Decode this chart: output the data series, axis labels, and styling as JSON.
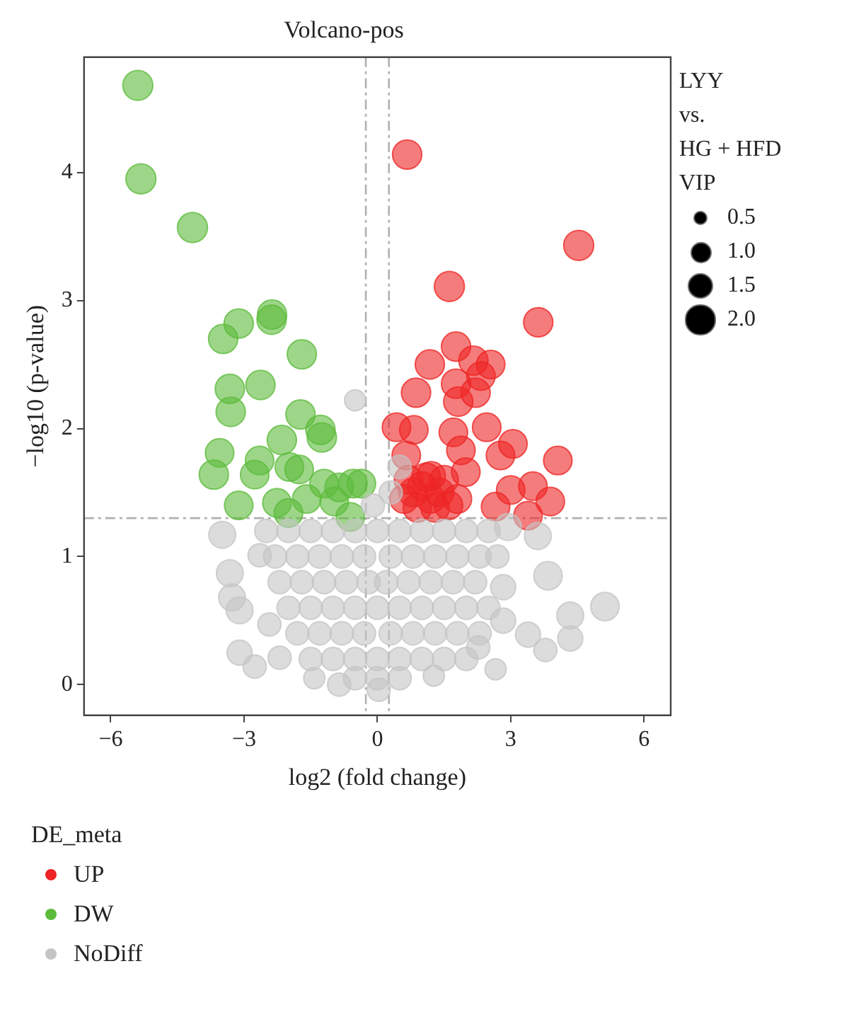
{
  "chart_data": {
    "type": "bubble",
    "title": "Volcano-pos",
    "xlabel": "log2 (fold change)",
    "ylabel": "−log10 (p-value)",
    "legend_title": "DE_meta",
    "legend": "bottom left",
    "grid": false,
    "marker": "circle",
    "xlim": [
      -6.6,
      6.6
    ],
    "xticks": [
      {
        "value": -6,
        "label": "−6"
      },
      {
        "value": -3,
        "label": "−3"
      },
      0,
      3,
      6
    ],
    "ylim": [
      -0.24,
      4.9
    ],
    "yticks": [
      0,
      1,
      2,
      3,
      4
    ],
    "size_legend": [
      {
        "value": 0.5,
        "label": "0.5"
      },
      {
        "value": 1,
        "label": "1.0"
      },
      {
        "value": 1.5,
        "label": "1.5"
      },
      {
        "value": 2,
        "label": "2.0"
      }
    ],
    "annotations": [
      "LYY\nvs.\nHG + HFD",
      "VIP"
    ],
    "ref_lines": [
      {
        "axis": "x",
        "value": -0.26,
        "color": "#b0b0b0",
        "line_style": "dashed"
      },
      {
        "axis": "x",
        "value": 0.26,
        "color": "#b0b0b0",
        "line_style": "dashed"
      },
      {
        "axis": "y",
        "value": 1.3,
        "color": "#b0b0b0",
        "line_style": "dashed"
      }
    ],
    "series": [
      {
        "name": "UP",
        "color": "#ee2424",
        "x": [
          0.67,
          4.53,
          1.62,
          3.62,
          1.77,
          1.18,
          2.16,
          2.55,
          2.33,
          0.87,
          1.77,
          1.82,
          2.21,
          0.43,
          0.82,
          1.71,
          2.46,
          3.05,
          2.77,
          0.65,
          1.88,
          4.06,
          1.99,
          1.21,
          3.0,
          3.5,
          3.89,
          2.66,
          3.39,
          0.6,
          0.8,
          1.0,
          1.2,
          1.4,
          1.6,
          0.9,
          1.3,
          1.1,
          0.7,
          1.5,
          1.8
        ],
        "values": [
          4.14,
          3.43,
          3.11,
          2.83,
          2.64,
          2.5,
          2.53,
          2.5,
          2.41,
          2.28,
          2.35,
          2.21,
          2.28,
          2.01,
          1.99,
          1.97,
          2.01,
          1.88,
          1.79,
          1.79,
          1.83,
          1.75,
          1.66,
          1.63,
          1.52,
          1.55,
          1.43,
          1.39,
          1.32,
          1.45,
          1.5,
          1.55,
          1.45,
          1.5,
          1.4,
          1.38,
          1.38,
          1.62,
          1.6,
          1.6,
          1.45
        ],
        "sizes": [
          1.9,
          2.0,
          2.0,
          1.9,
          1.9,
          1.9,
          1.9,
          1.8,
          1.8,
          1.9,
          1.9,
          1.9,
          1.9,
          1.8,
          1.8,
          1.8,
          1.8,
          1.8,
          1.8,
          1.8,
          1.8,
          1.8,
          1.8,
          1.8,
          1.8,
          1.8,
          1.8,
          1.8,
          1.8,
          1.8,
          1.8,
          1.8,
          1.8,
          1.8,
          1.8,
          1.8,
          1.8,
          1.8,
          1.8,
          1.8,
          1.8
        ]
      },
      {
        "name": "DW",
        "color": "#5cbb3a",
        "x": [
          -5.39,
          -5.32,
          -4.16,
          -3.47,
          -3.12,
          -2.37,
          -2.38,
          -1.7,
          -3.32,
          -2.63,
          -3.3,
          -1.73,
          -1.28,
          -1.25,
          -2.15,
          -3.55,
          -3.68,
          -2.65,
          -2.76,
          -1.98,
          -1.76,
          -1.2,
          -0.86,
          -0.36,
          -3.12,
          -2.26,
          -2.0,
          -1.59,
          -0.97,
          -0.61,
          -0.55
        ],
        "values": [
          4.68,
          3.95,
          3.57,
          2.7,
          2.82,
          2.89,
          2.85,
          2.58,
          2.31,
          2.34,
          2.13,
          2.11,
          1.99,
          1.93,
          1.91,
          1.81,
          1.64,
          1.75,
          1.64,
          1.7,
          1.68,
          1.57,
          1.54,
          1.57,
          1.4,
          1.42,
          1.34,
          1.45,
          1.43,
          1.31,
          1.57
        ],
        "sizes": [
          2.0,
          2.0,
          2.0,
          1.9,
          1.9,
          1.9,
          1.9,
          1.9,
          1.9,
          1.9,
          1.9,
          1.9,
          1.9,
          1.9,
          1.9,
          1.8,
          1.9,
          1.8,
          1.8,
          1.8,
          1.8,
          1.8,
          1.8,
          1.8,
          1.8,
          1.8,
          1.8,
          1.8,
          1.8,
          1.8,
          1.8
        ]
      },
      {
        "name": "NoDiff",
        "color": "#c4c4c4",
        "x": [
          -3.49,
          -3.32,
          -3.27,
          -3.1,
          -3.1,
          -2.76,
          -1.42,
          -0.86,
          3.84,
          5.12,
          4.34,
          4.34,
          3.78,
          2.66,
          3.39,
          3.61,
          2.94,
          2.83,
          2.83,
          -0.5,
          2.27,
          1.27,
          0.03,
          -2.65,
          -2.43,
          -2.2,
          -2.5,
          -2,
          -1.5,
          -1,
          -0.5,
          0,
          0.5,
          1,
          1.5,
          2,
          2.5,
          -2.3,
          -1.8,
          -1.3,
          -0.8,
          -0.3,
          0.3,
          0.8,
          1.3,
          1.8,
          2.3,
          2.7,
          -2.2,
          -1.7,
          -1.2,
          -0.7,
          -0.2,
          0.2,
          0.7,
          1.2,
          1.7,
          2.2,
          -2,
          -1.5,
          -1,
          -0.5,
          0,
          0.5,
          1,
          1.5,
          2,
          2.5,
          -1.8,
          -1.3,
          -0.8,
          -0.3,
          0.3,
          0.8,
          1.3,
          1.8,
          2.3,
          -1.5,
          -1,
          -0.5,
          0,
          0.5,
          1,
          1.5,
          2,
          -0.5,
          0,
          0.5,
          0.3,
          0.5,
          0.3,
          -0.1
        ],
        "values": [
          1.17,
          0.87,
          0.68,
          0.58,
          0.25,
          0.14,
          0.05,
          0.0,
          0.85,
          0.61,
          0.54,
          0.36,
          0.27,
          0.12,
          0.39,
          1.16,
          1.23,
          0.76,
          0.5,
          2.22,
          0.29,
          0.07,
          -0.04,
          1.01,
          0.47,
          0.21,
          1.2,
          1.2,
          1.2,
          1.2,
          1.2,
          1.2,
          1.2,
          1.2,
          1.2,
          1.2,
          1.2,
          1.0,
          1.0,
          1.0,
          1.0,
          1.0,
          1.0,
          1.0,
          1.0,
          1.0,
          1.0,
          1.0,
          0.8,
          0.8,
          0.8,
          0.8,
          0.8,
          0.8,
          0.8,
          0.8,
          0.8,
          0.8,
          0.6,
          0.6,
          0.6,
          0.6,
          0.6,
          0.6,
          0.6,
          0.6,
          0.6,
          0.6,
          0.4,
          0.4,
          0.4,
          0.4,
          0.4,
          0.4,
          0.4,
          0.4,
          0.4,
          0.2,
          0.2,
          0.2,
          0.2,
          0.2,
          0.2,
          0.2,
          0.2,
          0.05,
          0.05,
          0.05,
          1.5,
          1.7,
          null,
          1.4
        ],
        "sizes": [
          1.6,
          1.6,
          1.6,
          1.6,
          1.4,
          1.2,
          1.0,
          1.2,
          1.8,
          1.8,
          1.6,
          1.4,
          1.2,
          1.0,
          1.4,
          1.6,
          1.6,
          1.4,
          1.4,
          1.0,
          1.2,
          1.0,
          1.2,
          1.2,
          1.2,
          1.2,
          1.2,
          1.2,
          1.2,
          1.2,
          1.2,
          1.2,
          1.2,
          1.2,
          1.2,
          1.2,
          1.2,
          1.2,
          1.2,
          1.2,
          1.2,
          1.2,
          1.2,
          1.2,
          1.2,
          1.2,
          1.2,
          1.2,
          1.2,
          1.2,
          1.2,
          1.2,
          1.2,
          1.2,
          1.2,
          1.2,
          1.2,
          1.2,
          1.2,
          1.2,
          1.2,
          1.2,
          1.2,
          1.2,
          1.2,
          1.2,
          1.2,
          1.2,
          1.2,
          1.2,
          1.2,
          1.2,
          1.2,
          1.2,
          1.2,
          1.2,
          1.2,
          1.2,
          1.2,
          1.2,
          1.2,
          1.2,
          1.2,
          1.2,
          1.2,
          1.2,
          1.2,
          1.2,
          1.2,
          1.2,
          null,
          1.2
        ]
      }
    ]
  }
}
